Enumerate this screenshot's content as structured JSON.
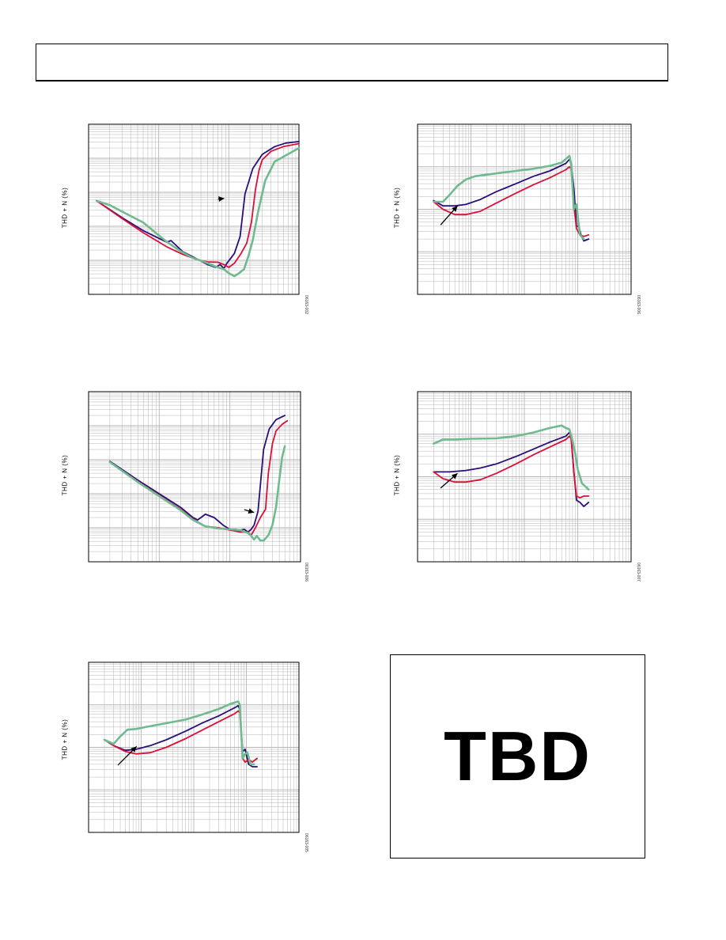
{
  "page": {
    "tbd_text": "TBD"
  },
  "colors": {
    "series_a": "#2a0e7a",
    "series_b": "#d8103a",
    "series_c": "#6fba8e",
    "grid": "#b5b5b5",
    "frame": "#000000"
  },
  "chart_data": [
    {
      "id": "chart-1",
      "type": "line",
      "ylabel": "THD + N (%)",
      "figure_id": "06163-002",
      "xscale": "log",
      "yscale": "log",
      "xlim": [
        0.01,
        10
      ],
      "ylim": [
        0.001,
        100
      ],
      "grid": true,
      "arrow": {
        "from": [
          0.7,
          0.63
        ],
        "to": [
          0.86,
          0.66
        ]
      },
      "series": [
        {
          "color_key": "series_a",
          "x": [
            0.013,
            0.03,
            0.06,
            0.13,
            0.15,
            0.22,
            0.35,
            0.5,
            0.65,
            0.75,
            0.85,
            0.95,
            1.05,
            1.2,
            1.45,
            1.7,
            2.2,
            3,
            4.5,
            6.5,
            10
          ],
          "y": [
            0.56,
            0.18,
            0.075,
            0.034,
            0.038,
            0.018,
            0.011,
            0.0075,
            0.0062,
            0.0075,
            0.0058,
            0.0085,
            0.011,
            0.016,
            0.05,
            0.9,
            5,
            13,
            22,
            28,
            31
          ]
        },
        {
          "color_key": "series_b",
          "x": [
            0.013,
            0.03,
            0.06,
            0.13,
            0.22,
            0.35,
            0.5,
            0.7,
            0.85,
            1.0,
            1.2,
            1.5,
            1.8,
            2.1,
            2.4,
            2.7,
            3,
            4,
            6,
            10
          ],
          "y": [
            0.56,
            0.17,
            0.065,
            0.025,
            0.015,
            0.0105,
            0.009,
            0.0088,
            0.0075,
            0.0062,
            0.0082,
            0.016,
            0.032,
            0.13,
            1.2,
            4.5,
            9,
            16,
            22,
            27
          ]
        },
        {
          "color_key": "series_c",
          "x": [
            0.013,
            0.02,
            0.04,
            0.06,
            0.09,
            0.13,
            0.2,
            0.3,
            0.45,
            0.65,
            0.85,
            1.0,
            1.2,
            1.4,
            1.65,
            1.9,
            2.2,
            2.6,
            3.3,
            4.5,
            10
          ],
          "y": [
            0.56,
            0.42,
            0.2,
            0.13,
            0.065,
            0.035,
            0.019,
            0.012,
            0.009,
            0.0065,
            0.0055,
            0.0042,
            0.0034,
            0.0042,
            0.0055,
            0.013,
            0.04,
            0.25,
            2.2,
            8,
            20
          ]
        }
      ]
    },
    {
      "id": "chart-2",
      "type": "line",
      "ylabel": "THD + N (%)",
      "figure_id": "06163-006",
      "xscale": "log",
      "yscale": "log",
      "xlim": [
        10,
        100000
      ],
      "ylim": [
        0.001,
        10
      ],
      "grid": true,
      "arrow": {
        "from": [
          27,
          0.043
        ],
        "to": [
          56,
          0.12
        ]
      },
      "series": [
        {
          "color_key": "series_a",
          "x": [
            20,
            30,
            50,
            80,
            150,
            300,
            700,
            1500,
            3000,
            6000,
            7000,
            7500,
            8500,
            9500,
            10500,
            11500,
            13000,
            16000
          ],
          "y": [
            0.16,
            0.12,
            0.12,
            0.13,
            0.17,
            0.26,
            0.4,
            0.6,
            0.8,
            1.2,
            1.5,
            1.2,
            0.3,
            0.04,
            0.04,
            0.025,
            0.018,
            0.02
          ]
        },
        {
          "color_key": "series_b",
          "x": [
            20,
            30,
            50,
            80,
            150,
            300,
            700,
            1500,
            3000,
            6000,
            7000,
            7500,
            8500,
            9500,
            11000,
            13000,
            16000
          ],
          "y": [
            0.15,
            0.1,
            0.075,
            0.075,
            0.09,
            0.14,
            0.24,
            0.38,
            0.55,
            0.85,
            1.0,
            0.9,
            0.12,
            0.035,
            0.025,
            0.023,
            0.025
          ]
        },
        {
          "color_key": "series_c",
          "x": [
            20,
            30,
            40,
            55,
            80,
            120,
            300,
            700,
            1500,
            3000,
            5000,
            7000,
            7500,
            8500,
            9000,
            9500,
            10000,
            11000,
            13000
          ],
          "y": [
            0.15,
            0.15,
            0.22,
            0.35,
            0.5,
            0.6,
            0.7,
            0.8,
            0.9,
            1.05,
            1.25,
            1.8,
            1.2,
            0.1,
            0.12,
            0.13,
            0.07,
            0.025,
            0.02
          ]
        }
      ]
    },
    {
      "id": "chart-3",
      "type": "line",
      "ylabel": "THD + N (%)",
      "figure_id": "06163-006",
      "xscale": "log",
      "yscale": "log",
      "xlim": [
        0.01,
        10
      ],
      "ylim": [
        0.001,
        100
      ],
      "grid": true,
      "arrow": {
        "from": [
          1.6,
          0.034
        ],
        "to": [
          2.2,
          0.028
        ]
      },
      "series": [
        {
          "color_key": "series_a",
          "x": [
            0.02,
            0.05,
            0.1,
            0.2,
            0.3,
            0.35,
            0.45,
            0.6,
            0.8,
            1.0,
            1.2,
            1.4,
            1.6,
            1.8,
            2.0,
            2.2,
            2.5,
            3,
            3.6,
            4.5,
            6
          ],
          "y": [
            0.9,
            0.25,
            0.1,
            0.04,
            0.02,
            0.017,
            0.025,
            0.02,
            0.012,
            0.009,
            0.009,
            0.0085,
            0.009,
            0.0075,
            0.009,
            0.012,
            0.03,
            2,
            8,
            15,
            20
          ]
        },
        {
          "color_key": "series_b",
          "x": [
            0.02,
            0.05,
            0.1,
            0.2,
            0.3,
            0.45,
            0.7,
            1.0,
            1.4,
            1.8,
            2.0,
            2.3,
            2.7,
            3.2,
            3.5,
            4,
            4.5,
            5.5,
            6.5
          ],
          "y": [
            0.85,
            0.23,
            0.09,
            0.035,
            0.018,
            0.011,
            0.01,
            0.0085,
            0.0075,
            0.0075,
            0.006,
            0.01,
            0.02,
            0.035,
            0.4,
            3,
            7,
            11,
            14
          ]
        },
        {
          "color_key": "series_c",
          "x": [
            0.02,
            0.05,
            0.1,
            0.2,
            0.3,
            0.45,
            0.7,
            1.0,
            1.4,
            1.8,
            2.0,
            2.2,
            2.4,
            2.7,
            3.0,
            3.5,
            4,
            4.5,
            5,
            5.5,
            6
          ],
          "y": [
            0.85,
            0.22,
            0.085,
            0.033,
            0.017,
            0.011,
            0.0095,
            0.009,
            0.0085,
            0.007,
            0.0058,
            0.0045,
            0.0058,
            0.0042,
            0.0042,
            0.006,
            0.012,
            0.04,
            0.25,
            1.2,
            2.5
          ]
        }
      ]
    },
    {
      "id": "chart-4",
      "type": "line",
      "ylabel": "THD + N (%)",
      "figure_id": "06163-007",
      "xscale": "log",
      "yscale": "log",
      "xlim": [
        10,
        100000
      ],
      "ylim": [
        0.001,
        10
      ],
      "grid": true,
      "arrow": {
        "from": [
          27,
          0.054
        ],
        "to": [
          56,
          0.12
        ]
      },
      "series": [
        {
          "color_key": "series_a",
          "x": [
            20,
            40,
            80,
            150,
            300,
            700,
            1500,
            3000,
            6000,
            7000,
            7500,
            8500,
            9500,
            11000,
            13000,
            16000
          ],
          "y": [
            0.13,
            0.13,
            0.14,
            0.16,
            0.2,
            0.3,
            0.45,
            0.65,
            0.9,
            1.1,
            0.9,
            0.13,
            0.028,
            0.025,
            0.02,
            0.025
          ]
        },
        {
          "color_key": "series_b",
          "x": [
            20,
            30,
            50,
            80,
            150,
            300,
            700,
            1500,
            3000,
            6000,
            7000,
            7500,
            8500,
            9500,
            11000,
            13000,
            16000
          ],
          "y": [
            0.13,
            0.09,
            0.075,
            0.075,
            0.085,
            0.12,
            0.2,
            0.33,
            0.5,
            0.75,
            0.9,
            0.8,
            0.12,
            0.035,
            0.032,
            0.035,
            0.035
          ]
        },
        {
          "color_key": "series_c",
          "x": [
            20,
            30,
            50,
            100,
            300,
            700,
            1500,
            3000,
            5000,
            6000,
            7000,
            8000,
            9000,
            10000,
            12000,
            16000
          ],
          "y": [
            0.6,
            0.75,
            0.75,
            0.78,
            0.8,
            0.9,
            1.1,
            1.4,
            1.6,
            1.4,
            1.3,
            0.7,
            0.35,
            0.15,
            0.07,
            0.05
          ]
        }
      ]
    },
    {
      "id": "chart-5",
      "type": "line",
      "ylabel": "THD + N (%)",
      "figure_id": "06163-005",
      "xscale": "log",
      "yscale": "log",
      "xlim": [
        10,
        100000
      ],
      "ylim": [
        0.001,
        10
      ],
      "grid": true,
      "arrow": {
        "from": [
          36,
          0.038
        ],
        "to": [
          82,
          0.105
        ]
      },
      "series": [
        {
          "color_key": "series_a",
          "x": [
            20,
            30,
            50,
            80,
            150,
            300,
            700,
            1500,
            3000,
            6000,
            7000,
            7500,
            8500,
            9500,
            11000,
            13000,
            16000
          ],
          "y": [
            0.15,
            0.11,
            0.085,
            0.09,
            0.11,
            0.15,
            0.24,
            0.38,
            0.55,
            0.85,
            0.95,
            0.8,
            0.08,
            0.09,
            0.04,
            0.035,
            0.035
          ]
        },
        {
          "color_key": "series_b",
          "x": [
            20,
            30,
            50,
            80,
            150,
            300,
            700,
            1500,
            3000,
            6000,
            7000,
            7500,
            8500,
            9500,
            11000,
            13000,
            16000
          ],
          "y": [
            0.15,
            0.11,
            0.08,
            0.07,
            0.075,
            0.1,
            0.16,
            0.26,
            0.4,
            0.62,
            0.72,
            0.65,
            0.055,
            0.045,
            0.052,
            0.045,
            0.055
          ]
        },
        {
          "color_key": "series_c",
          "x": [
            20,
            30,
            40,
            55,
            80,
            120,
            300,
            700,
            1500,
            3000,
            5000,
            7000,
            7500,
            8500,
            9500,
            10500,
            12000,
            14000
          ],
          "y": [
            0.15,
            0.12,
            0.18,
            0.26,
            0.27,
            0.3,
            0.37,
            0.45,
            0.6,
            0.8,
            1.05,
            1.2,
            1.0,
            0.055,
            0.07,
            0.075,
            0.04,
            0.04
          ]
        }
      ]
    }
  ]
}
